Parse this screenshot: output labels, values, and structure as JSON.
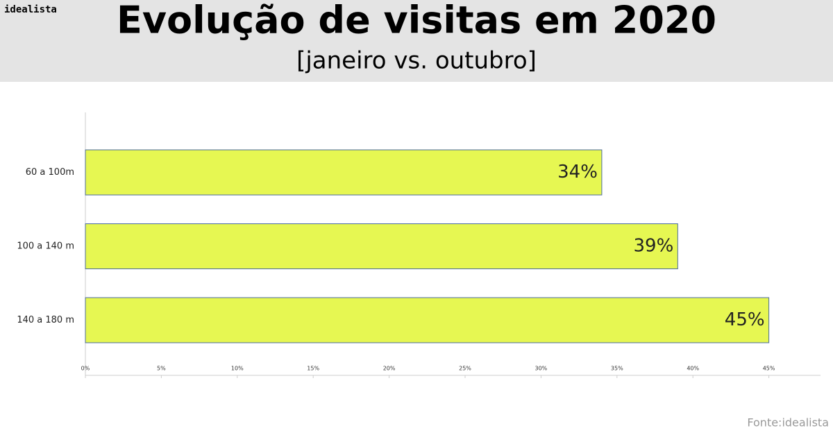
{
  "brand": "idealista",
  "chart_data": {
    "type": "bar",
    "orientation": "horizontal",
    "title": "Evolução de visitas em 2020",
    "subtitle": "[janeiro vs. outubro]",
    "categories": [
      "60 a 100m",
      "100 a 140 m",
      "140 a 180 m"
    ],
    "values": [
      34,
      39,
      45
    ],
    "value_labels": [
      "34%",
      "39%",
      "45%"
    ],
    "color": "#e6f752",
    "xlim": [
      0,
      48.4
    ],
    "xticks": [
      {
        "value": 0,
        "label": "0%"
      },
      {
        "value": 5,
        "label": "5%"
      },
      {
        "value": 10,
        "label": "10%"
      },
      {
        "value": 15,
        "label": "15%"
      },
      {
        "value": 20,
        "label": "20%"
      },
      {
        "value": 25,
        "label": "25%"
      },
      {
        "value": 30,
        "label": "30%"
      },
      {
        "value": 35,
        "label": "35%"
      },
      {
        "value": 40,
        "label": "40%"
      },
      {
        "value": 45,
        "label": "45%"
      }
    ],
    "grid": false,
    "source": "Fonte:idealista"
  }
}
